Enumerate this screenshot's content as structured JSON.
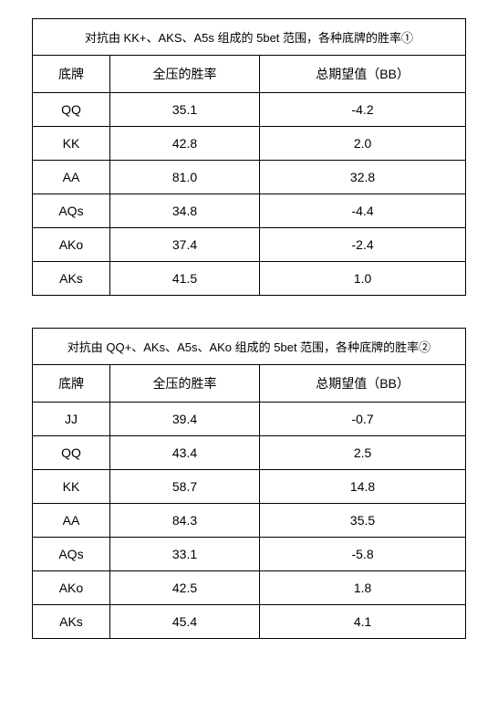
{
  "table1": {
    "caption": "对抗由 KK+、AKS、A5s 组成的 5bet 范围，各种底牌的胜率①",
    "border_color": "#000000",
    "bg_color": "#ffffff",
    "text_color": "#000000",
    "font_size": 14,
    "caption_font_size": 13,
    "columns": [
      "底牌",
      "全压的胜率",
      "总期望值（BB）"
    ],
    "rows": [
      [
        "QQ",
        "35.1",
        "-4.2"
      ],
      [
        "KK",
        "42.8",
        "2.0"
      ],
      [
        "AA",
        "81.0",
        "32.8"
      ],
      [
        "AQs",
        "34.8",
        "-4.4"
      ],
      [
        "AKo",
        "37.4",
        "-2.4"
      ],
      [
        "AKs",
        "41.5",
        "1.0"
      ]
    ]
  },
  "table2": {
    "caption": "对抗由 QQ+、AKs、A5s、AKo 组成的 5bet 范围，各种底牌的胜率②",
    "border_color": "#000000",
    "bg_color": "#ffffff",
    "text_color": "#000000",
    "font_size": 14,
    "caption_font_size": 13,
    "columns": [
      "底牌",
      "全压的胜率",
      "总期望值（BB）"
    ],
    "rows": [
      [
        "JJ",
        "39.4",
        "-0.7"
      ],
      [
        "QQ",
        "43.4",
        "2.5"
      ],
      [
        "KK",
        "58.7",
        "14.8"
      ],
      [
        "AA",
        "84.3",
        "35.5"
      ],
      [
        "AQs",
        "33.1",
        "-5.8"
      ],
      [
        "AKo",
        "42.5",
        "1.8"
      ],
      [
        "AKs",
        "45.4",
        "4.1"
      ]
    ]
  }
}
